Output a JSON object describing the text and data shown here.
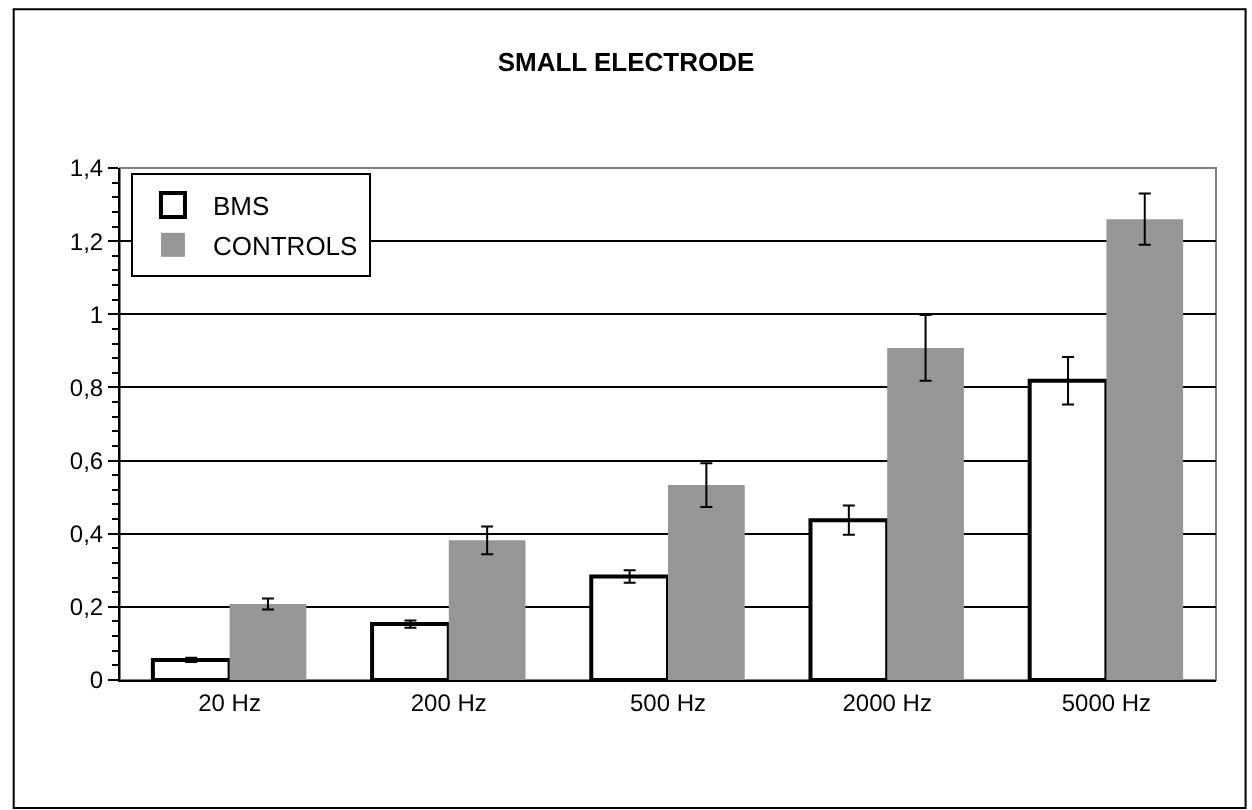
{
  "chart_data": {
    "type": "bar",
    "title": "SMALL ELECTRODE",
    "categories": [
      "20 Hz",
      "200 Hz",
      "500 Hz",
      "2000 Hz",
      "5000 Hz"
    ],
    "series": [
      {
        "name": "BMS",
        "color": "#ffffff",
        "values": [
          0.055,
          0.153,
          0.283,
          0.437,
          0.818
        ],
        "errors": [
          0.006,
          0.01,
          0.017,
          0.04,
          0.065
        ]
      },
      {
        "name": "CONTROLS",
        "color": "#969696",
        "values": [
          0.208,
          0.382,
          0.533,
          0.908,
          1.26
        ],
        "errors": [
          0.015,
          0.038,
          0.06,
          0.09,
          0.07
        ]
      }
    ],
    "ylim": [
      0,
      1.4
    ],
    "yticks": [
      {
        "value": 0,
        "label": "0"
      },
      {
        "value": 0.2,
        "label": "0,2"
      },
      {
        "value": 0.4,
        "label": "0,4"
      },
      {
        "value": 0.6,
        "label": "0,6"
      },
      {
        "value": 0.8,
        "label": "0,8"
      },
      {
        "value": 1,
        "label": "1"
      },
      {
        "value": 1.2,
        "label": "1,2"
      },
      {
        "value": 1.4,
        "label": "1,4"
      }
    ],
    "grid": "y",
    "legend": "top left"
  }
}
